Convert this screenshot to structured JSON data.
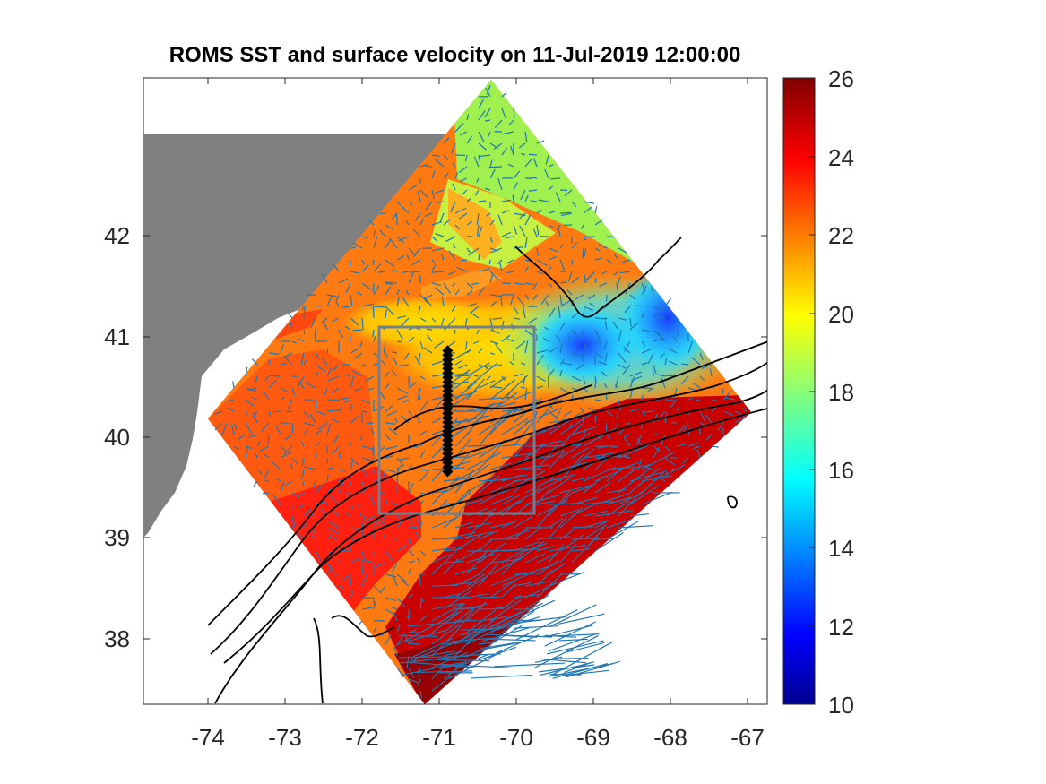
{
  "title": "ROMS SST and surface velocity on 11-Jul-2019 12:00:00",
  "map": {
    "x_ticks": [
      "-74",
      "-73",
      "-72",
      "-71",
      "-70",
      "-69",
      "-68",
      "-67"
    ],
    "y_ticks": [
      "38",
      "39",
      "40",
      "41",
      "42"
    ],
    "lon_range": [
      -74.85,
      -66.75
    ],
    "lat_range": [
      37.3,
      43.5
    ],
    "land_color": "#808080",
    "vector_color": "#1f77b4",
    "box_color": "#708090",
    "transect": {
      "lon": -70.9,
      "lat_start": 39.6,
      "lat_end": 40.8
    }
  },
  "colorbar": {
    "label_min": "10",
    "ticks": [
      "10",
      "12",
      "14",
      "16",
      "18",
      "20",
      "22",
      "24",
      "26"
    ],
    "colormap": "jet",
    "range": [
      10,
      26
    ]
  }
}
